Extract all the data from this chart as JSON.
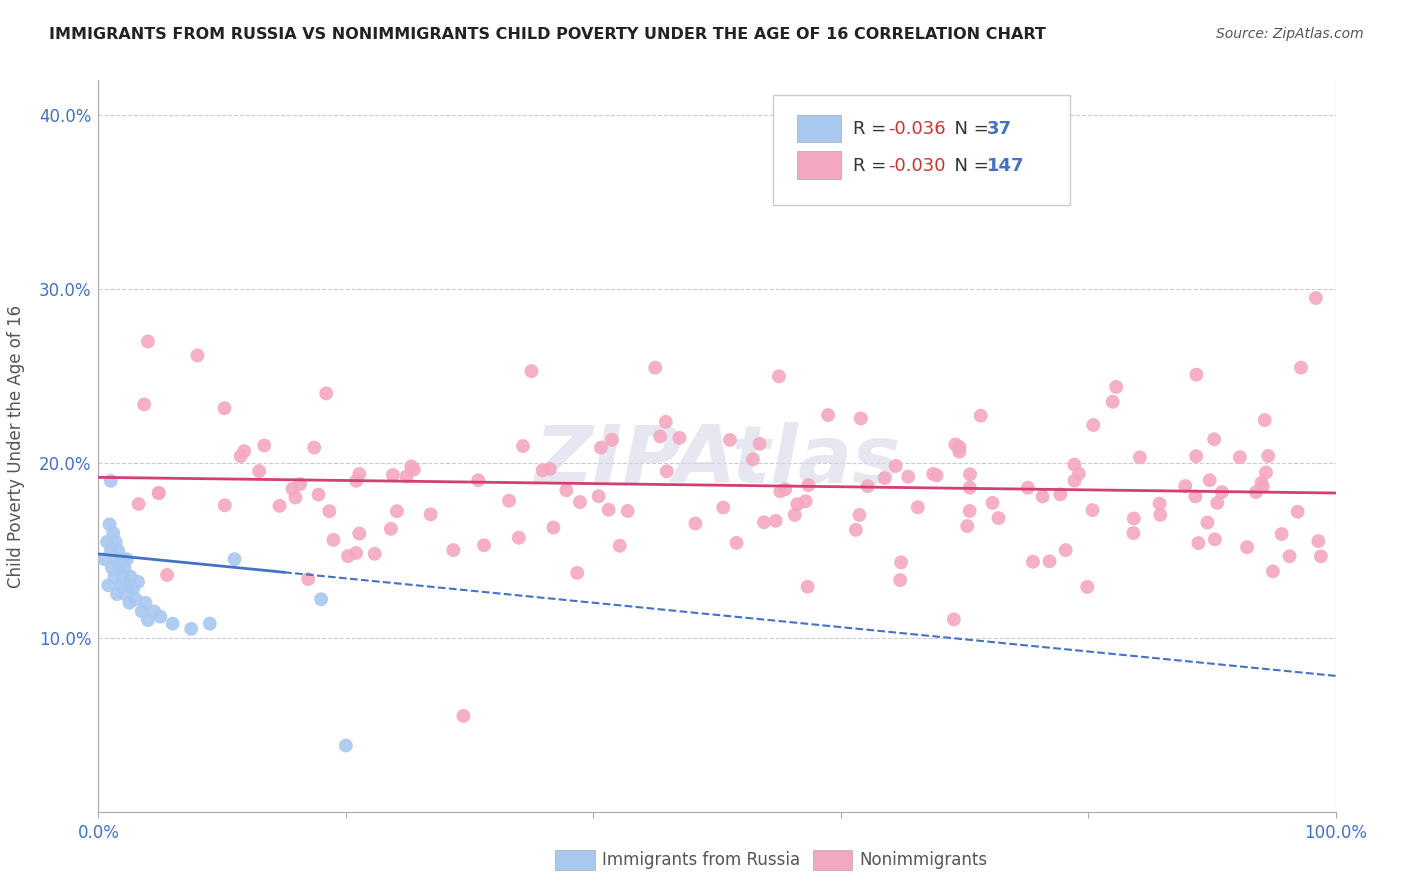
{
  "title": "IMMIGRANTS FROM RUSSIA VS NONIMMIGRANTS CHILD POVERTY UNDER THE AGE OF 16 CORRELATION CHART",
  "source": "Source: ZipAtlas.com",
  "ylabel": "Child Poverty Under the Age of 16",
  "xlim": [
    0.0,
    1.0
  ],
  "ylim": [
    0.0,
    0.42
  ],
  "ytick_vals": [
    0.1,
    0.2,
    0.3,
    0.4
  ],
  "ytick_labels": [
    "10.0%",
    "20.0%",
    "30.0%",
    "40.0%"
  ],
  "xtick_vals": [
    0.0,
    0.2,
    0.4,
    0.6,
    0.8,
    1.0
  ],
  "xtick_labels": [
    "0.0%",
    "",
    "",
    "",
    "",
    "100.0%"
  ],
  "watermark": "ZIPAtlas",
  "blue_trend_y_start": 0.148,
  "blue_trend_y_end": 0.078,
  "pink_trend_y_start": 0.192,
  "pink_trend_y_end": 0.183,
  "blue_color": "#a8c8f0",
  "pink_color": "#f4a8c0",
  "blue_line_color": "#4472c4",
  "pink_line_color": "#d04070",
  "scatter_size": 100,
  "background_color": "#ffffff",
  "grid_color": "#cccccc",
  "tick_label_color": "#4472c4",
  "ylabel_color": "#555555",
  "title_color": "#222222",
  "source_color": "#555555"
}
